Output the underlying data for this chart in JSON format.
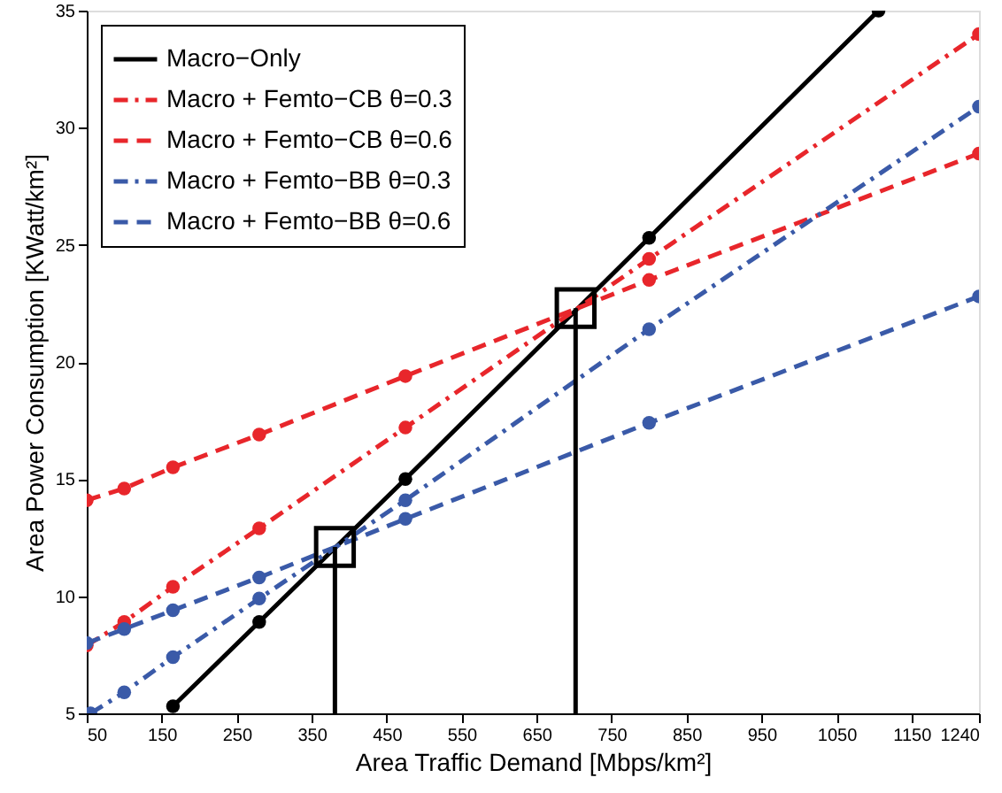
{
  "chart_data": {
    "type": "line",
    "xlabel": "Area Traffic Demand [Mbps/km²]",
    "ylabel": "Area Power Consumption [KWatt/km²]",
    "xlim": [
      50,
      1240
    ],
    "xticks": [
      50,
      150,
      250,
      350,
      450,
      550,
      650,
      750,
      850,
      950,
      1050,
      1150,
      1240
    ],
    "ylim": [
      5,
      35
    ],
    "yticks": [
      5,
      10,
      15,
      20,
      25,
      30,
      35
    ],
    "grid": false,
    "legend": "top left",
    "series": [
      {
        "name": "Macro−Only",
        "color": "#000000",
        "line_style": "solid",
        "marker": "circle",
        "x": [
          165,
          280,
          475,
          800,
          1106
        ],
        "values": [
          5.3,
          8.9,
          15.0,
          25.3,
          35.0
        ]
      },
      {
        "name": "Macro + Femto−CB θ=0.3",
        "color": "#e8262b",
        "line_style": "dashdot",
        "marker": "circle",
        "x": [
          50,
          100,
          165,
          280,
          475,
          800,
          1240
        ],
        "values": [
          7.9,
          8.9,
          10.4,
          12.9,
          17.2,
          24.4,
          34.0
        ]
      },
      {
        "name": "Macro + Femto−CB θ=0.6",
        "color": "#e8262b",
        "line_style": "dashed",
        "marker": "circle",
        "x": [
          50,
          100,
          165,
          280,
          475,
          800,
          1240
        ],
        "values": [
          14.1,
          14.6,
          15.5,
          16.9,
          19.4,
          23.5,
          28.9
        ]
      },
      {
        "name": "Macro + Femto−BB θ=0.3",
        "color": "#3a5aa8",
        "line_style": "dashdot",
        "marker": "circle",
        "x": [
          55,
          100,
          165,
          280,
          475,
          800,
          1240
        ],
        "values": [
          5.0,
          5.9,
          7.4,
          9.9,
          14.1,
          21.4,
          30.9
        ]
      },
      {
        "name": "Macro + Femto−BB θ=0.6",
        "color": "#3a5aa8",
        "line_style": "dashed",
        "marker": "circle",
        "x": [
          50,
          100,
          165,
          280,
          475,
          800,
          1240
        ],
        "values": [
          8.0,
          8.6,
          9.4,
          10.8,
          13.3,
          17.4,
          22.8
        ]
      },
      {
        "type": "scatter",
        "color": "#000000",
        "marker": "square",
        "x": [
          381,
          702
        ],
        "values": [
          12.1,
          22.3
        ]
      },
      {
        "color": "#000000",
        "line_style": "solid",
        "marker": "none",
        "x": [
          381,
          381
        ],
        "values": [
          5.0,
          12.1
        ]
      },
      {
        "color": "#000000",
        "line_style": "solid",
        "marker": "none",
        "x": [
          702,
          702
        ],
        "values": [
          5.0,
          22.3
        ]
      }
    ]
  }
}
